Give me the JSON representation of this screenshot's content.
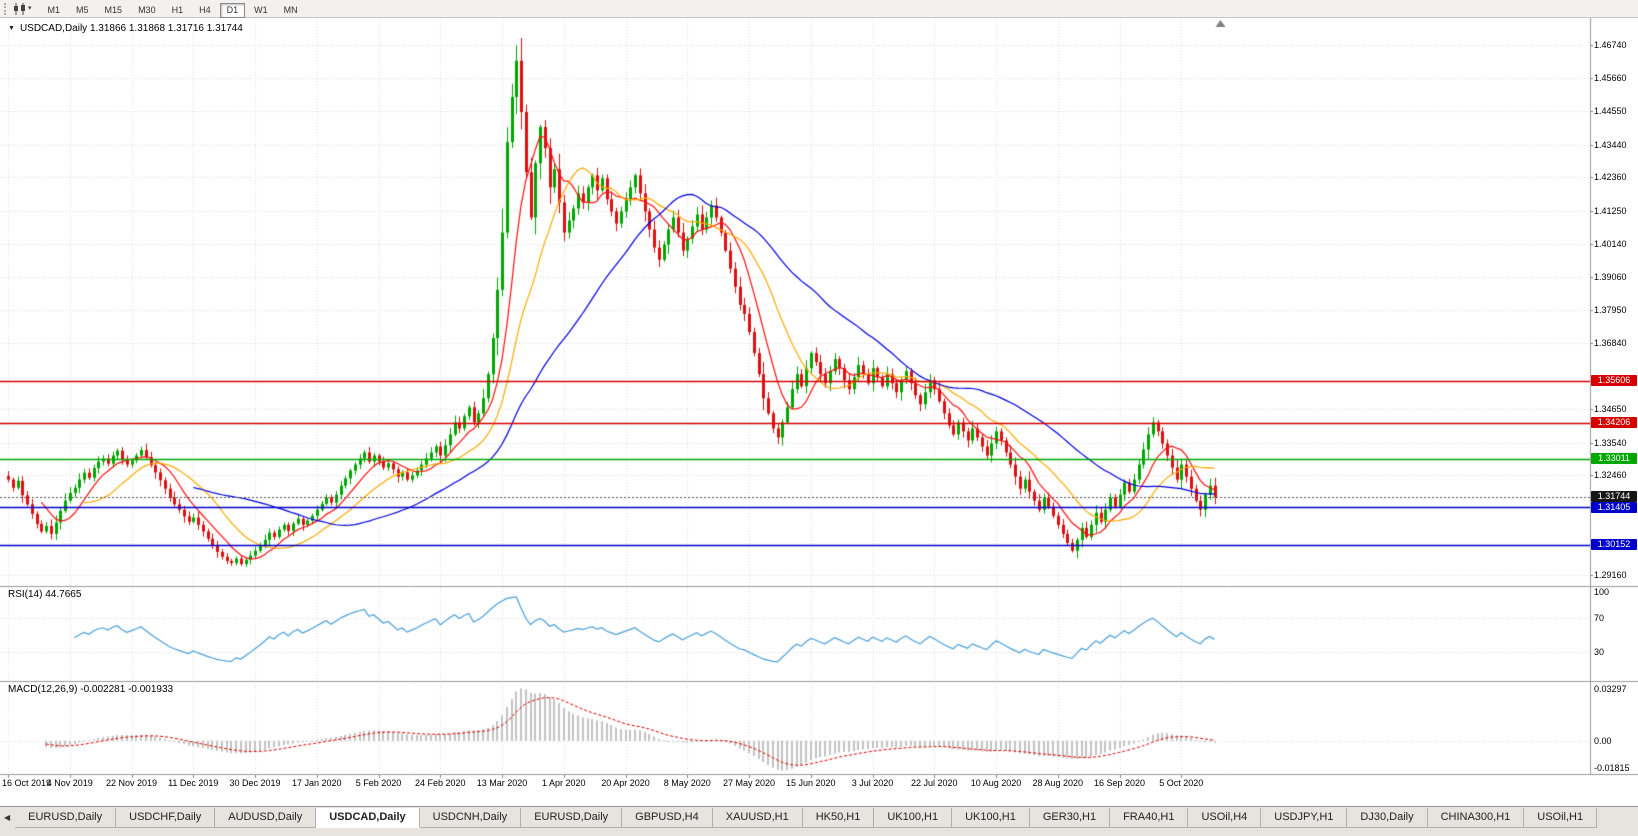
{
  "toolbar": {
    "timeframes": [
      "M1",
      "M5",
      "M15",
      "M30",
      "H1",
      "H4",
      "D1",
      "W1",
      "MN"
    ],
    "active_timeframe": "D1",
    "icons": [
      "toolbar-grip",
      "chart-window-icon",
      "dropdown-caret-icon"
    ]
  },
  "chart": {
    "title_line": "USDCAD,Daily 1.31866 1.31868 1.31716 1.31744",
    "symbol": "USDCAD",
    "period": "Daily",
    "ohlc": {
      "open": "1.31866",
      "high": "1.31868",
      "low": "1.31716",
      "close": "1.31744"
    },
    "rsi_label": "RSI(14) 44.7665",
    "macd_label": "MACD(12,26,9) -0.002281 -0.001933"
  },
  "price_axis": {
    "ticks": [
      "1.46740",
      "1.45660",
      "1.44550",
      "1.43440",
      "1.42360",
      "1.41250",
      "1.40140",
      "1.39060",
      "1.37950",
      "1.36840",
      "1.34650",
      "1.33540",
      "1.32460",
      "1.29160"
    ],
    "badges": [
      {
        "label": "1.35606",
        "value": 1.35606,
        "color": "#d60000"
      },
      {
        "label": "1.34206",
        "value": 1.34206,
        "color": "#d60000"
      },
      {
        "label": "1.33011",
        "value": 1.33011,
        "color": "#00a800"
      },
      {
        "label": "1.31744",
        "value": 1.31744,
        "color": "#161616"
      },
      {
        "label": "1.31405",
        "value": 1.31405,
        "color": "#0000cc"
      },
      {
        "label": "1.30152",
        "value": 1.30152,
        "color": "#0000cc"
      }
    ]
  },
  "rsi_axis": [
    {
      "label": "100",
      "value": 100
    },
    {
      "label": "70",
      "value": 70
    },
    {
      "label": "30",
      "value": 30
    }
  ],
  "macd_axis": [
    {
      "label": "0.03297",
      "value": 0.03297
    },
    {
      "label": "0.00",
      "value": 0
    },
    {
      "label": "-0.01815",
      "value": -0.01815
    }
  ],
  "time_axis": {
    "labels": [
      "16 Oct 2019",
      "4 Nov 2019",
      "22 Nov 2019",
      "11 Dec 2019",
      "30 Dec 2019",
      "17 Jan 2020",
      "5 Feb 2020",
      "24 Feb 2020",
      "13 Mar 2020",
      "1 Apr 2020",
      "20 Apr 2020",
      "8 May 2020",
      "27 May 2020",
      "15 Jun 2020",
      "3 Jul 2020",
      "22 Jul 2020",
      "10 Aug 2020",
      "28 Aug 2020",
      "16 Sep 2020",
      "5 Oct 2020"
    ]
  },
  "tabs": {
    "items": [
      "EURUSD,Daily",
      "USDCHF,Daily",
      "AUDUSD,Daily",
      "USDCAD,Daily",
      "USDCNH,Daily",
      "EURUSD,Daily",
      "GBPUSD,H4",
      "XAUUSD,H1",
      "HK50,H1",
      "UK100,H1",
      "UK100,H1",
      "GER30,H1",
      "FRA40,H1",
      "USOil,H4",
      "USDJPY,H1",
      "DJ30,Daily",
      "CHINA300,H1",
      "USOil,H1"
    ],
    "active_index": 3,
    "scroll_left_icon": "tab-scroll-left-icon"
  },
  "chart_data": {
    "type": "candlestick",
    "symbol": "USDCAD",
    "timeframe": "Daily",
    "ylim": [
      1.2879,
      1.4764
    ],
    "date_tick_interval": 13,
    "colors": {
      "up": "#00a600",
      "down": "#dd0f0f",
      "grid": "#dcdcdc",
      "signal": "#e00000",
      "histogram": "#c2c2c2"
    },
    "closes": [
      1.3232,
      1.3205,
      1.3228,
      1.318,
      1.315,
      1.3118,
      1.3085,
      1.306,
      1.3078,
      1.3052,
      1.309,
      1.3128,
      1.3162,
      1.3188,
      1.3205,
      1.3232,
      1.3255,
      1.3238,
      1.327,
      1.3292,
      1.3302,
      1.3285,
      1.3312,
      1.3328,
      1.33,
      1.3282,
      1.3296,
      1.3312,
      1.333,
      1.3306,
      1.328,
      1.3256,
      1.323,
      1.3202,
      1.3172,
      1.315,
      1.3132,
      1.311,
      1.3092,
      1.3106,
      1.3082,
      1.306,
      1.3036,
      1.3012,
      1.2992,
      1.2976,
      1.2962,
      1.2955,
      1.297,
      1.2952,
      1.2966,
      1.298,
      1.2996,
      1.3012,
      1.3032,
      1.3056,
      1.3042,
      1.3066,
      1.3082,
      1.3062,
      1.3086,
      1.3102,
      1.3082,
      1.3096,
      1.3112,
      1.3132,
      1.3152,
      1.3172,
      1.3156,
      1.3182,
      1.3212,
      1.3236,
      1.3262,
      1.3282,
      1.3302,
      1.3322,
      1.3292,
      1.3312,
      1.3292,
      1.3272,
      1.3286,
      1.3266,
      1.3242,
      1.3256,
      1.3232,
      1.3246,
      1.3262,
      1.3282,
      1.3302,
      1.3322,
      1.3342,
      1.3312,
      1.3346,
      1.3382,
      1.3422,
      1.3402,
      1.3442,
      1.3472,
      1.3422,
      1.3452,
      1.3502,
      1.3582,
      1.3702,
      1.3862,
      1.4052,
      1.4352,
      1.4502,
      1.4622,
      1.4452,
      1.4252,
      1.4102,
      1.4282,
      1.4402,
      1.4332,
      1.4202,
      1.4262,
      1.4152,
      1.4052,
      1.4092,
      1.4132,
      1.4182,
      1.4152,
      1.4202,
      1.4242,
      1.4192,
      1.4232,
      1.4162,
      1.4122,
      1.4082,
      1.4122,
      1.4162,
      1.4202,
      1.4242,
      1.4182,
      1.4122,
      1.4062,
      1.4002,
      1.3962,
      1.4012,
      1.4062,
      1.4102,
      1.4052,
      1.3992,
      1.4032,
      1.4072,
      1.4112,
      1.4062,
      1.4102,
      1.4142,
      1.4102,
      1.4052,
      1.3992,
      1.3932,
      1.3872,
      1.3812,
      1.3782,
      1.3722,
      1.3652,
      1.3582,
      1.3502,
      1.3452,
      1.3402,
      1.3372,
      1.3422,
      1.3472,
      1.3532,
      1.3582,
      1.3542,
      1.3602,
      1.3652,
      1.3622,
      1.3582,
      1.3552,
      1.3592,
      1.3632,
      1.3602,
      1.3562,
      1.3532,
      1.3572,
      1.3612,
      1.3582,
      1.3552,
      1.3602,
      1.3572,
      1.3542,
      1.3582,
      1.3552,
      1.3522,
      1.3562,
      1.3592,
      1.3552,
      1.3512,
      1.3482,
      1.3522,
      1.3562,
      1.3532,
      1.3492,
      1.3452,
      1.3412,
      1.3382,
      1.3422,
      1.3392,
      1.3362,
      1.3402,
      1.3372,
      1.3342,
      1.3312,
      1.3352,
      1.3392,
      1.3362,
      1.3322,
      1.3282,
      1.3242,
      1.3202,
      1.3232,
      1.3192,
      1.3162,
      1.3132,
      1.3172,
      1.3142,
      1.3112,
      1.3082,
      1.3052,
      1.3022,
      1.2996,
      1.3032,
      1.3072,
      1.3042,
      1.3082,
      1.3122,
      1.3092,
      1.3132,
      1.3172,
      1.3142,
      1.3182,
      1.3222,
      1.3192,
      1.3232,
      1.3282,
      1.3332,
      1.3382,
      1.3422,
      1.3392,
      1.3352,
      1.3312,
      1.3272,
      1.3232,
      1.3282,
      1.3242,
      1.3202,
      1.3162,
      1.3132,
      1.3182,
      1.3212,
      1.31744
    ],
    "high_overrides": {
      "107": 1.4674
    },
    "low_overrides": {
      "49": 1.2946,
      "224": 1.299
    },
    "moving_averages": [
      {
        "period": 8,
        "color": "#ff1010"
      },
      {
        "period": 17,
        "color": "#ffaa00"
      },
      {
        "period": 40,
        "color": "#0000e0"
      }
    ],
    "hlines": [
      {
        "price": 1.35606,
        "color": "#d60000"
      },
      {
        "price": 1.34206,
        "color": "#d60000"
      },
      {
        "price": 1.33011,
        "color": "#00a800"
      },
      {
        "price": 1.31405,
        "color": "#0000cc"
      },
      {
        "price": 1.30152,
        "color": "#0000cc"
      }
    ],
    "current_price": 1.31744,
    "rsi": {
      "period": 14,
      "levels": [
        70,
        30
      ],
      "last": 44.7665,
      "color": "#4aa0dc"
    },
    "macd": {
      "fast": 12,
      "slow": 26,
      "signal": 9,
      "last": -0.002281,
      "last_signal": -0.001933,
      "range": [
        -0.01815,
        0.03297
      ]
    }
  }
}
